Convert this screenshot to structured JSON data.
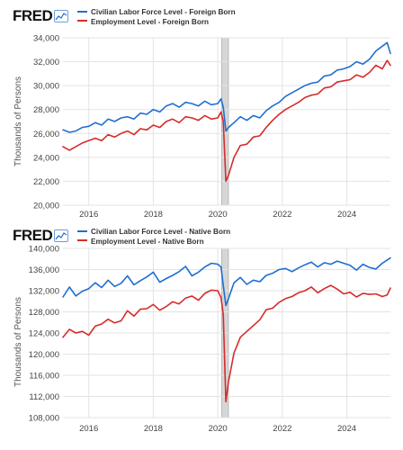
{
  "brand": "FRED",
  "colors": {
    "blue": "#1f6fd1",
    "red": "#d62b2b",
    "grid": "#e3e3e3",
    "recession": "#c8c8c8"
  },
  "icons": [
    "fred-graph-icon"
  ],
  "chart_data": [
    {
      "type": "line",
      "ylabel": "Thousands of Persons",
      "ylim": [
        20000,
        34000
      ],
      "yticks": [
        "20,000",
        "22,000",
        "24,000",
        "26,000",
        "28,000",
        "30,000",
        "32,000",
        "34,000"
      ],
      "ytick_values": [
        20000,
        22000,
        24000,
        26000,
        28000,
        30000,
        32000,
        34000
      ],
      "xlim": [
        2015.2,
        2025.35
      ],
      "xticks": [
        "2016",
        "2018",
        "2020",
        "2022",
        "2024"
      ],
      "xtick_values": [
        2016,
        2018,
        2020,
        2022,
        2024
      ],
      "recession": [
        2020.12,
        2020.33
      ],
      "grid": true,
      "series": [
        {
          "name": "Civilian Labor Force Level - Foreign Born",
          "color": "#1f6fd1",
          "x": [
            2015.2,
            2015.4,
            2015.6,
            2015.8,
            2016.0,
            2016.2,
            2016.4,
            2016.6,
            2016.8,
            2017.0,
            2017.2,
            2017.4,
            2017.6,
            2017.8,
            2018.0,
            2018.2,
            2018.4,
            2018.6,
            2018.8,
            2019.0,
            2019.2,
            2019.4,
            2019.6,
            2019.8,
            2020.0,
            2020.1,
            2020.17,
            2020.25,
            2020.33,
            2020.5,
            2020.7,
            2020.9,
            2021.1,
            2021.3,
            2021.5,
            2021.7,
            2021.9,
            2022.1,
            2022.3,
            2022.5,
            2022.7,
            2022.9,
            2023.1,
            2023.3,
            2023.5,
            2023.7,
            2023.9,
            2024.1,
            2024.3,
            2024.5,
            2024.7,
            2024.9,
            2025.1,
            2025.25,
            2025.35
          ],
          "y": [
            26300,
            26100,
            26200,
            26500,
            26600,
            26900,
            26700,
            27200,
            27000,
            27300,
            27400,
            27200,
            27700,
            27600,
            28000,
            27800,
            28300,
            28500,
            28200,
            28600,
            28500,
            28300,
            28700,
            28400,
            28500,
            28900,
            28200,
            26200,
            26500,
            26900,
            27400,
            27100,
            27500,
            27300,
            27900,
            28300,
            28600,
            29100,
            29400,
            29700,
            30000,
            30200,
            30300,
            30800,
            30900,
            31300,
            31400,
            31600,
            32000,
            31800,
            32200,
            32900,
            33300,
            33600,
            32700
          ]
        },
        {
          "name": "Employment Level - Foreign Born",
          "color": "#d62b2b",
          "x": [
            2015.2,
            2015.4,
            2015.6,
            2015.8,
            2016.0,
            2016.2,
            2016.4,
            2016.6,
            2016.8,
            2017.0,
            2017.2,
            2017.4,
            2017.6,
            2017.8,
            2018.0,
            2018.2,
            2018.4,
            2018.6,
            2018.8,
            2019.0,
            2019.2,
            2019.4,
            2019.6,
            2019.8,
            2020.0,
            2020.1,
            2020.17,
            2020.25,
            2020.33,
            2020.5,
            2020.7,
            2020.9,
            2021.1,
            2021.3,
            2021.5,
            2021.7,
            2021.9,
            2022.1,
            2022.3,
            2022.5,
            2022.7,
            2022.9,
            2023.1,
            2023.3,
            2023.5,
            2023.7,
            2023.9,
            2024.1,
            2024.3,
            2024.5,
            2024.7,
            2024.9,
            2025.1,
            2025.25,
            2025.35
          ],
          "y": [
            24900,
            24600,
            24900,
            25200,
            25400,
            25600,
            25400,
            25900,
            25700,
            26000,
            26200,
            25900,
            26400,
            26300,
            26700,
            26500,
            27000,
            27200,
            26900,
            27400,
            27300,
            27100,
            27500,
            27200,
            27300,
            27800,
            27000,
            22000,
            22500,
            24000,
            25000,
            25100,
            25700,
            25800,
            26500,
            27100,
            27600,
            28000,
            28300,
            28600,
            29000,
            29200,
            29300,
            29800,
            29900,
            30300,
            30400,
            30500,
            30900,
            30700,
            31100,
            31700,
            31400,
            32100,
            31700
          ]
        }
      ]
    },
    {
      "type": "line",
      "ylabel": "Thousands of Persons",
      "ylim": [
        108000,
        140000
      ],
      "yticks": [
        "108,000",
        "112,000",
        "116,000",
        "120,000",
        "124,000",
        "128,000",
        "132,000",
        "136,000",
        "140,000"
      ],
      "ytick_values": [
        108000,
        112000,
        116000,
        120000,
        124000,
        128000,
        132000,
        136000,
        140000
      ],
      "xlim": [
        2015.2,
        2025.35
      ],
      "xticks": [
        "2016",
        "2018",
        "2020",
        "2022",
        "2024"
      ],
      "xtick_values": [
        2016,
        2018,
        2020,
        2022,
        2024
      ],
      "recession": [
        2020.12,
        2020.33
      ],
      "grid": true,
      "series": [
        {
          "name": "Civilian Labor Force Level - Native Born",
          "color": "#1f6fd1",
          "x": [
            2015.2,
            2015.4,
            2015.6,
            2015.8,
            2016.0,
            2016.2,
            2016.4,
            2016.6,
            2016.8,
            2017.0,
            2017.2,
            2017.4,
            2017.6,
            2017.8,
            2018.0,
            2018.2,
            2018.4,
            2018.6,
            2018.8,
            2019.0,
            2019.2,
            2019.4,
            2019.6,
            2019.8,
            2020.0,
            2020.1,
            2020.17,
            2020.25,
            2020.33,
            2020.5,
            2020.7,
            2020.9,
            2021.1,
            2021.3,
            2021.5,
            2021.7,
            2021.9,
            2022.1,
            2022.3,
            2022.5,
            2022.7,
            2022.9,
            2023.1,
            2023.3,
            2023.5,
            2023.7,
            2023.9,
            2024.1,
            2024.3,
            2024.5,
            2024.7,
            2024.9,
            2025.1,
            2025.25,
            2025.35
          ],
          "y": [
            130800,
            132700,
            131000,
            131900,
            132400,
            133500,
            132600,
            134000,
            132800,
            133400,
            134800,
            133100,
            133900,
            134600,
            135500,
            133600,
            134300,
            134900,
            135600,
            136600,
            134800,
            135500,
            136500,
            137200,
            137000,
            136500,
            133000,
            129200,
            130500,
            133500,
            134500,
            133200,
            134000,
            133700,
            134900,
            135300,
            136000,
            136200,
            135600,
            136300,
            136900,
            137400,
            136500,
            137300,
            137000,
            137600,
            137200,
            136800,
            135900,
            137000,
            136400,
            136100,
            137200,
            137800,
            138200
          ]
        },
        {
          "name": "Employment Level - Native Born",
          "color": "#d62b2b",
          "x": [
            2015.2,
            2015.4,
            2015.6,
            2015.8,
            2016.0,
            2016.2,
            2016.4,
            2016.6,
            2016.8,
            2017.0,
            2017.2,
            2017.4,
            2017.6,
            2017.8,
            2018.0,
            2018.2,
            2018.4,
            2018.6,
            2018.8,
            2019.0,
            2019.2,
            2019.4,
            2019.6,
            2019.8,
            2020.0,
            2020.1,
            2020.17,
            2020.25,
            2020.33,
            2020.5,
            2020.7,
            2020.9,
            2021.1,
            2021.3,
            2021.5,
            2021.7,
            2021.9,
            2022.1,
            2022.3,
            2022.5,
            2022.7,
            2022.9,
            2023.1,
            2023.3,
            2023.5,
            2023.7,
            2023.9,
            2024.1,
            2024.3,
            2024.5,
            2024.7,
            2024.9,
            2025.1,
            2025.25,
            2025.35
          ],
          "y": [
            123200,
            124700,
            124000,
            124300,
            123600,
            125300,
            125700,
            126600,
            125900,
            126300,
            128200,
            127200,
            128500,
            128600,
            129400,
            128300,
            129000,
            129900,
            129500,
            130600,
            131000,
            130200,
            131500,
            132100,
            132000,
            130700,
            127500,
            111000,
            114800,
            120200,
            123200,
            124300,
            125400,
            126500,
            128400,
            128700,
            129800,
            130500,
            130900,
            131600,
            132000,
            132700,
            131600,
            132400,
            133000,
            132300,
            131400,
            131700,
            130800,
            131500,
            131300,
            131400,
            130900,
            131200,
            132500
          ]
        }
      ]
    }
  ]
}
